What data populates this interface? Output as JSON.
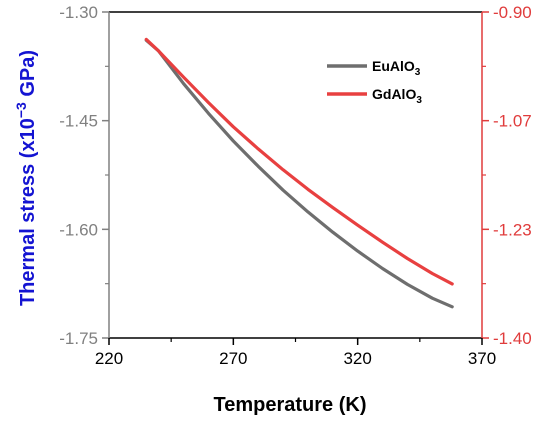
{
  "chart_data": {
    "type": "line",
    "xlabel": "Temperature (K)",
    "ylabel": {
      "main": "Thermal stress (x10",
      "sup": "−3",
      "tail": " GPa)"
    },
    "xlim": [
      220,
      370
    ],
    "ylim_left": [
      -1.75,
      -1.3
    ],
    "ylim_right": [
      -1.4,
      -0.9
    ],
    "x_ticks": [
      "220",
      "270",
      "320",
      "370"
    ],
    "y_left_ticks": [
      "-1.30",
      "-1.45",
      "-1.60",
      "-1.75"
    ],
    "y_right_ticks": [
      "-0.90",
      "-1.07",
      "-1.23",
      "-1.40"
    ],
    "colors": {
      "left_axis": "#808080",
      "right_axis": "#e03c3c",
      "ylabel": "#1414d2",
      "frame": "#000000"
    },
    "legend": {
      "placement": "top-right"
    },
    "grid": false,
    "series": [
      {
        "name": {
          "base": "EuAlO",
          "sub": "3"
        },
        "axis": "left",
        "color": "#6e6e6e",
        "x": [
          235,
          240,
          250,
          260,
          270,
          280,
          290,
          300,
          310,
          320,
          330,
          340,
          350,
          358
        ],
        "y": [
          -1.339,
          -1.354,
          -1.399,
          -1.44,
          -1.478,
          -1.513,
          -1.546,
          -1.576,
          -1.604,
          -1.63,
          -1.654,
          -1.676,
          -1.695,
          -1.707
        ]
      },
      {
        "name": {
          "base": "GdAlO",
          "sub": "3"
        },
        "axis": "right",
        "color": "#e84040",
        "x": [
          235,
          240,
          250,
          260,
          270,
          280,
          290,
          300,
          310,
          320,
          330,
          340,
          350,
          358
        ],
        "y": [
          -0.942,
          -0.96,
          -1.0,
          -1.039,
          -1.076,
          -1.11,
          -1.142,
          -1.172,
          -1.2,
          -1.227,
          -1.253,
          -1.278,
          -1.301,
          -1.317
        ]
      }
    ]
  }
}
